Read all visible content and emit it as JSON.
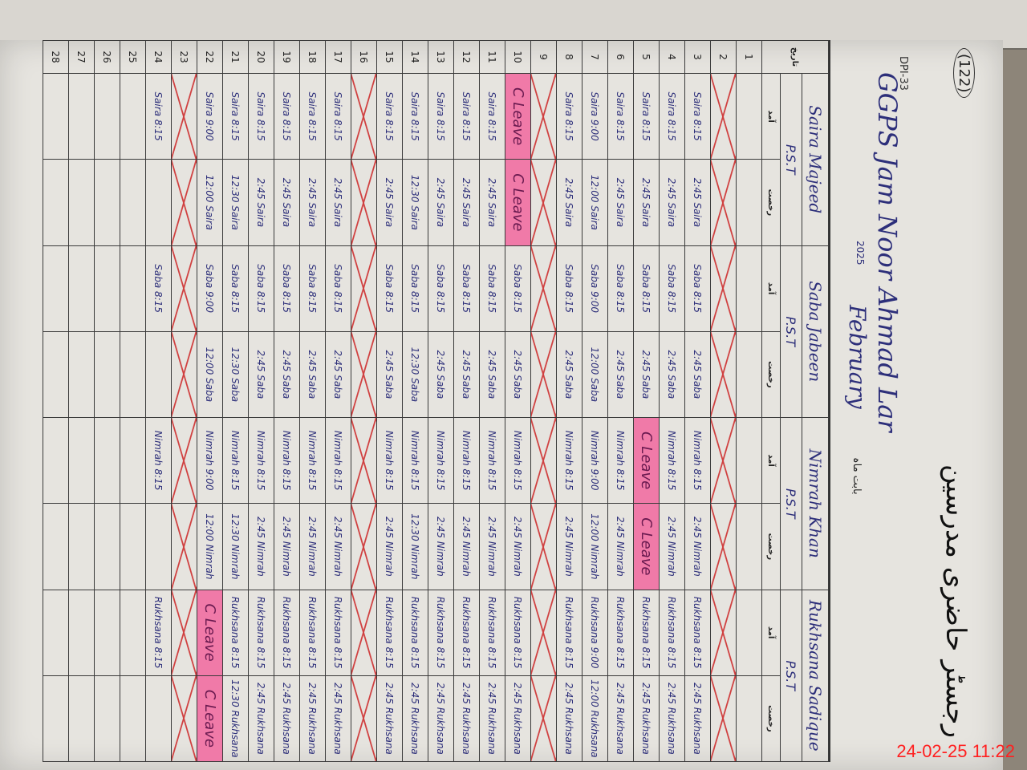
{
  "header": {
    "page_number": "(122)",
    "form_number": "DPI-33",
    "title_urdu": "رجسٹر حاضری مدرسین",
    "school": "GGPS Jam Noor Ahmad Lar",
    "month": "February",
    "year": "2025",
    "month_label": "بابت ماہ"
  },
  "teachers": [
    {
      "name": "Saira Majeed",
      "post": "P.S.T"
    },
    {
      "name": "Saba Jabeen",
      "post": "P.S.T"
    },
    {
      "name": "Nimrah Khan",
      "post": "P.S.T"
    },
    {
      "name": "Rukhsana Sadique",
      "post": "P.S.T"
    }
  ],
  "sub_headers": {
    "day": "تاریخ",
    "arrival": "آمد",
    "departure": "رخصت"
  },
  "rows": [
    {
      "day": "1",
      "cells": [
        "",
        "",
        "",
        "",
        "",
        "",
        "",
        ""
      ]
    },
    {
      "day": "2",
      "cells": [
        "X",
        "X",
        "X",
        "X",
        "X",
        "X",
        "X",
        "X"
      ]
    },
    {
      "day": "3",
      "cells": [
        "Saira 8:15",
        "2:45 Saira",
        "Saba 8:15",
        "2:45 Saba",
        "Nimrah 8:15",
        "2:45 Nimrah",
        "Rukhsana 8:15",
        "2:45 Rukhsana"
      ]
    },
    {
      "day": "4",
      "cells": [
        "Saira 8:15",
        "2:45 Saira",
        "Saba 8:15",
        "2:45 Saba",
        "Nimrah 8:15",
        "2:45 Nimrah",
        "Rukhsana 8:15",
        "2:45 Rukhsana"
      ]
    },
    {
      "day": "5",
      "cells": [
        "Saira 8:15",
        "2:45 Saira",
        "Saba 8:15",
        "2:45 Saba",
        "C Leave",
        "C Leave",
        "Rukhsana 8:15",
        "2:45 Rukhsana"
      ]
    },
    {
      "day": "6",
      "cells": [
        "Saira 8:15",
        "2:45 Saira",
        "Saba 8:15",
        "2:45 Saba",
        "Nimrah 8:15",
        "2:45 Nimrah",
        "Rukhsana 8:15",
        "2:45 Rukhsana"
      ]
    },
    {
      "day": "7",
      "cells": [
        "Saira 9:00",
        "12:00 Saira",
        "Saba 9:00",
        "12:00 Saba",
        "Nimrah 9:00",
        "12:00 Nimrah",
        "Rukhsana 9:00",
        "12:00 Rukhsana"
      ]
    },
    {
      "day": "8",
      "cells": [
        "Saira 8:15",
        "2:45 Saira",
        "Saba 8:15",
        "2:45 Saba",
        "Nimrah 8:15",
        "2:45 Nimrah",
        "Rukhsana 8:15",
        "2:45 Rukhsana"
      ]
    },
    {
      "day": "9",
      "cells": [
        "X",
        "X",
        "X",
        "X",
        "X",
        "X",
        "X",
        "X"
      ]
    },
    {
      "day": "10",
      "cells": [
        "C Leave",
        "C Leave",
        "Saba 8:15",
        "2:45 Saba",
        "Nimrah 8:15",
        "2:45 Nimrah",
        "Rukhsana 8:15",
        "2:45 Rukhsana"
      ]
    },
    {
      "day": "11",
      "cells": [
        "Saira 8:15",
        "2:45 Saira",
        "Saba 8:15",
        "2:45 Saba",
        "Nimrah 8:15",
        "2:45 Nimrah",
        "Rukhsana 8:15",
        "2:45 Rukhsana"
      ]
    },
    {
      "day": "12",
      "cells": [
        "Saira 8:15",
        "2:45 Saira",
        "Saba 8:15",
        "2:45 Saba",
        "Nimrah 8:15",
        "2:45 Nimrah",
        "Rukhsana 8:15",
        "2:45 Rukhsana"
      ]
    },
    {
      "day": "13",
      "cells": [
        "Saira 8:15",
        "2:45 Saira",
        "Saba 8:15",
        "2:45 Saba",
        "Nimrah 8:15",
        "2:45 Nimrah",
        "Rukhsana 8:15",
        "2:45 Rukhsana"
      ]
    },
    {
      "day": "14",
      "cells": [
        "Saira 8:15",
        "12:30 Saira",
        "Saba 8:15",
        "12:30 Saba",
        "Nimrah 8:15",
        "12:30 Nimrah",
        "Rukhsana 8:15",
        "2:45 Rukhsana"
      ]
    },
    {
      "day": "15",
      "cells": [
        "Saira 8:15",
        "2:45 Saira",
        "Saba 8:15",
        "2:45 Saba",
        "Nimrah 8:15",
        "2:45 Nimrah",
        "Rukhsana 8:15",
        "2:45 Rukhsana"
      ]
    },
    {
      "day": "16",
      "cells": [
        "X",
        "X",
        "X",
        "X",
        "X",
        "X",
        "X",
        "X"
      ]
    },
    {
      "day": "17",
      "cells": [
        "Saira 8:15",
        "2:45 Saira",
        "Saba 8:15",
        "2:45 Saba",
        "Nimrah 8:15",
        "2:45 Nimrah",
        "Rukhsana 8:15",
        "2:45 Rukhsana"
      ]
    },
    {
      "day": "18",
      "cells": [
        "Saira 8:15",
        "2:45 Saira",
        "Saba 8:15",
        "2:45 Saba",
        "Nimrah 8:15",
        "2:45 Nimrah",
        "Rukhsana 8:15",
        "2:45 Rukhsana"
      ]
    },
    {
      "day": "19",
      "cells": [
        "Saira 8:15",
        "2:45 Saira",
        "Saba 8:15",
        "2:45 Saba",
        "Nimrah 8:15",
        "2:45 Nimrah",
        "Rukhsana 8:15",
        "2:45 Rukhsana"
      ]
    },
    {
      "day": "20",
      "cells": [
        "Saira 8:15",
        "2:45 Saira",
        "Saba 8:15",
        "2:45 Saba",
        "Nimrah 8:15",
        "2:45 Nimrah",
        "Rukhsana 8:15",
        "2:45 Rukhsana"
      ]
    },
    {
      "day": "21",
      "cells": [
        "Saira 8:15",
        "12:30 Saira",
        "Saba 8:15",
        "12:30 Saba",
        "Nimrah 8:15",
        "12:30 Nimrah",
        "Rukhsana 8:15",
        "12:30 Rukhsana"
      ]
    },
    {
      "day": "22",
      "cells": [
        "Saira 9:00",
        "12:00 Saira",
        "Saba 9:00",
        "12:00 Saba",
        "Nimrah 9:00",
        "12:00 Nimrah",
        "C Leave",
        "C Leave"
      ]
    },
    {
      "day": "23",
      "cells": [
        "X",
        "X",
        "X",
        "X",
        "X",
        "X",
        "X",
        "X"
      ]
    },
    {
      "day": "24",
      "cells": [
        "Saira 8:15",
        "",
        "Saba 8:15",
        "",
        "Nimrah 8:15",
        "",
        "Rukhsana 8:15",
        ""
      ]
    },
    {
      "day": "25",
      "cells": [
        "",
        "",
        "",
        "",
        "",
        "",
        "",
        ""
      ]
    },
    {
      "day": "26",
      "cells": [
        "",
        "",
        "",
        "",
        "",
        "",
        "",
        ""
      ]
    },
    {
      "day": "27",
      "cells": [
        "",
        "",
        "",
        "",
        "",
        "",
        "",
        ""
      ]
    },
    {
      "day": "28",
      "cells": [
        "",
        "",
        "",
        "",
        "",
        "",
        "",
        ""
      ]
    }
  ],
  "camera_timestamp": "24-02-25  11:22",
  "colors": {
    "ink": "#2d2f7a",
    "highlight": "#f07aa8",
    "cross": "#d04040",
    "timestamp": "#ff2020"
  }
}
